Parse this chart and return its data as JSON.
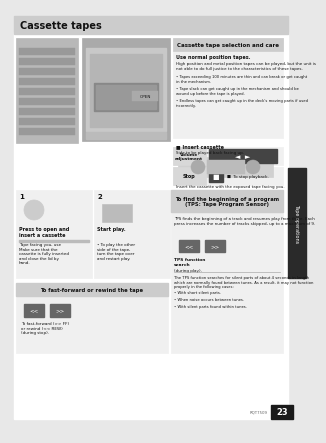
{
  "title": "Cassette tapes",
  "title_bg": "#cccccc",
  "title_text_color": "#111111",
  "page_bg": "#e8e8e8",
  "content_bg": "#ffffff",
  "page_number": "23",
  "page_number_bg": "#1a1a1a",
  "sidebar_text": "Tape operations",
  "sidebar_bg": "#2a2a2a",
  "right_section_title": "Cassette tape selection and care",
  "body_text_1": "Use normal position tapes.",
  "body_text_2": "High position and metal position tapes can be played, but the unit is\nnot able to do full justice to the characteristics of these tapes.",
  "bullet1": "Tapes exceeding 100 minutes are thin and can break or get caught\nin the mechanism.",
  "bullet2": "Tape slack can get caught up in the mechanism and should be\nwound up before the tape is played.",
  "bullet3": "Endless tapes can get caught up in the deck's moving parts if used\nincorrectly.",
  "insert_label": "Insert cassette",
  "insert_sub": "Side to be played back facing up.",
  "insert_sub2": "Insert the cassette with the exposed tape facing you.",
  "left_step1_title": "Press to open and\ninsert a cassette",
  "left_step1_body": "Tape facing you, use\nMake sure that the\ncassette is fully inserted\nand close the lid by\nhand.",
  "left_step2_title": "Start play.",
  "left_step2_body": "• To play the other\nside of the tape,\nturn the tape over\nand restart play.",
  "ffwd_box_title": "To fast-forward or rewind the tape",
  "ffwd_body": "To fast-forward (>> FF)\nor rewind (<< REW)\n(during stop).",
  "tps_box_title": "To find the beginning of a program\n(TPS: Tape Program Sensor)",
  "tps_body": "TPS finds the beginning of a track and resumes play from there. Each\npress increases the number of tracks skipped, up to a maximum of 9.",
  "tps_function_label": "TPS function\nsearch",
  "tps_function_sub": "(during play).",
  "tps_note": "The TPS function searches for silent parts of about 4 seconds in length\nwhich are normally found between tunes. As a result, it may not function\nproperly in the following cases:",
  "tps_bullets": [
    "• With short silent parts.",
    "• When noise occurs between tunes.",
    "• With silent parts found within tunes."
  ],
  "volume_label": "Volume\nadjustment",
  "stop_label": "Stop",
  "stop_sub": "■  To stop playback.",
  "open_label": "OPEN",
  "step1_num": "1",
  "step2_num": "2",
  "rqt_number": "RQT7509"
}
